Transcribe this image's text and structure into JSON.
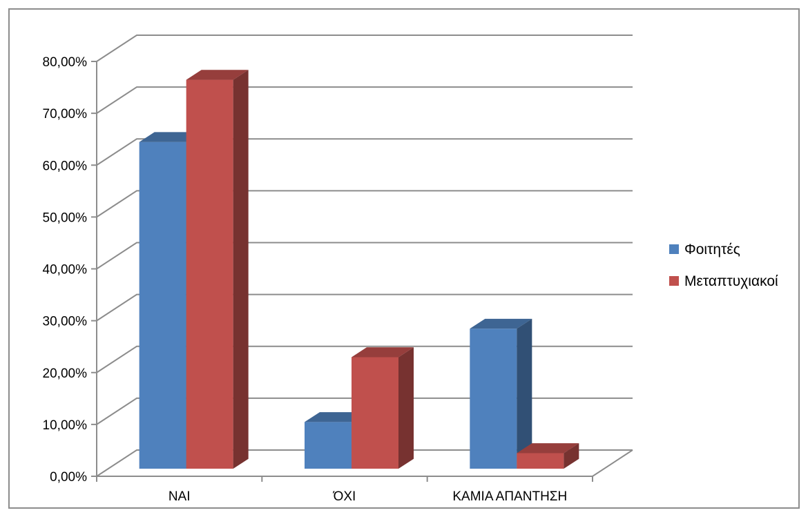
{
  "chart_data": {
    "type": "bar",
    "style": "3d-clustered-column",
    "categories": [
      "ΝΑΙ",
      "ΌΧΙ",
      "ΚΑΜΙΑ ΑΠΑΝΤΗΣΗ"
    ],
    "series": [
      {
        "name": "Φοιτητές",
        "values": [
          63.0,
          9.0,
          27.0
        ],
        "color": "#4F81BD"
      },
      {
        "name": "Μεταπτυχιακοί",
        "values": [
          75.0,
          21.5,
          3.0
        ],
        "color": "#C0504D"
      }
    ],
    "yticks": [
      "0,00%",
      "10,00%",
      "20,00%",
      "30,00%",
      "40,00%",
      "50,00%",
      "60,00%",
      "70,00%",
      "80,00%"
    ],
    "ylim": [
      0,
      80
    ],
    "grid": true,
    "legend_position": "right",
    "title": "",
    "xlabel": "",
    "ylabel": ""
  }
}
